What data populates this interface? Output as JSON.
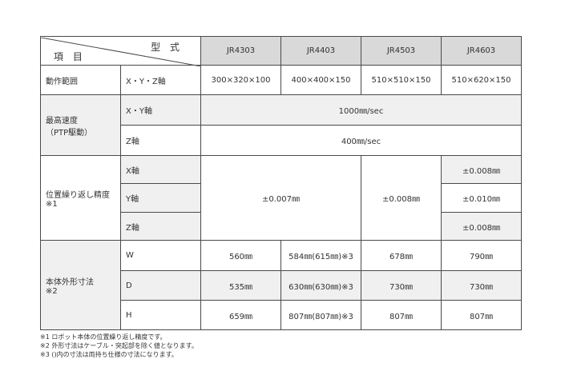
{
  "header": {
    "model_label": "型 式",
    "item_label": "項 目",
    "models": [
      "JR4303",
      "JR4403",
      "JR4503",
      "JR4603"
    ]
  },
  "rows": {
    "range": {
      "label": "動作範囲",
      "axis": "X・Y・Z軸",
      "values": [
        "300×320×100",
        "400×400×150",
        "510×510×150",
        "510×620×150"
      ]
    },
    "speed": {
      "label_line1": "最高速度",
      "label_line2": "（PTP駆動）",
      "xy_axis": "X・Y軸",
      "xy_value": "1000㎜/sec",
      "z_axis": "Z軸",
      "z_value": "400㎜/sec"
    },
    "repeat": {
      "label_line1": "位置繰り返し精度",
      "label_line2": "※1",
      "x_axis": "X軸",
      "y_axis": "Y軸",
      "z_axis": "Z軸",
      "jr4303_4403": "±0.007㎜",
      "jr4503": "±0.008㎜",
      "jr4603": [
        "±0.008㎜",
        "±0.010㎜",
        "±0.008㎜"
      ]
    },
    "size": {
      "label_line1": "本体外形寸法",
      "label_line2": "※2",
      "w": {
        "axis": "W",
        "values": [
          "560㎜",
          "584㎜(615㎜)※3",
          "678㎜",
          "790㎜"
        ]
      },
      "d": {
        "axis": "D",
        "values": [
          "535㎜",
          "630㎜(630㎜)※3",
          "730㎜",
          "730㎜"
        ]
      },
      "h": {
        "axis": "H",
        "values": [
          "659㎜",
          "807㎜(807㎜)※3",
          "807㎜",
          "807㎜"
        ]
      }
    }
  },
  "notes": [
    "※1 ロボット本体の位置繰り返し精度です。",
    "※2 外形寸法はケーブル・突起部を除く値となります。",
    "※3 ()内の寸法は両持ち仕様の寸法になります。"
  ]
}
